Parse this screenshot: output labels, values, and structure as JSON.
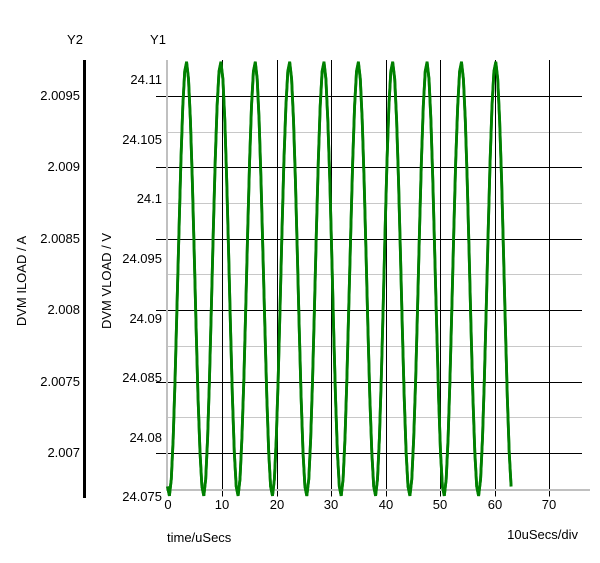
{
  "colors": {
    "background": "#ffffff",
    "trace": "#008000",
    "grid_major": "#000000",
    "grid_minor": "#c8c8c8",
    "axis_gray": "#c0c0c0",
    "axis_black": "#000000",
    "text": "#000000"
  },
  "chart_data": {
    "type": "line",
    "x_axis": {
      "label": "time/uSecs",
      "div_label": "10uSecs/div",
      "units": "uSecs",
      "tick_labels": [
        "0",
        "10",
        "20",
        "30",
        "40",
        "50",
        "60",
        "70"
      ],
      "tick_values": [
        0,
        10,
        20,
        30,
        40,
        50,
        60,
        70
      ],
      "range": [
        0,
        76
      ],
      "grid_every": 10
    },
    "y1_axis": {
      "header": "Y1",
      "label": "DVM VLOAD / V",
      "units": "V",
      "tick_labels": [
        "24.11",
        "24.105",
        "24.1",
        "24.095",
        "24.09",
        "24.085",
        "24.08",
        "24.075"
      ],
      "tick_values": [
        24.11,
        24.105,
        24.1,
        24.095,
        24.09,
        24.085,
        24.08,
        24.075
      ],
      "range": [
        24.0757,
        24.1117
      ]
    },
    "y2_axis": {
      "header": "Y2",
      "label": "DVM ILOAD / A",
      "units": "A",
      "tick_labels": [
        "2.0095",
        "2.009",
        "2.0085",
        "2.008",
        "2.0075",
        "2.007"
      ],
      "tick_values": [
        2.0095,
        2.009,
        2.0085,
        2.008,
        2.0075,
        2.007
      ],
      "range": [
        2.00675,
        2.00975
      ]
    },
    "grid": {
      "vertical_lines_us": [
        10,
        20,
        30,
        40,
        50,
        60,
        70
      ],
      "horizontal_major_from": "y2_axis.tick_values",
      "horizontal_minor": "midpoints_between_y2_ticks"
    },
    "series": [
      {
        "name": "DVM VLOAD",
        "axis": "Y1",
        "color": "#008000",
        "shape": "sine",
        "mean": 24.0933,
        "amplitude": 0.0182,
        "period_us": 6.3,
        "t_of_first_min_us": 0.3,
        "t_start_us": 0,
        "t_end_us": 63.2,
        "cycles_visible": 10
      },
      {
        "name": "DVM ILOAD",
        "axis": "Y2",
        "color": "#008000",
        "shape": "sine",
        "mean": 2.00822,
        "amplitude": 0.00152,
        "period_us": 6.3,
        "t_of_first_min_us": 0.3,
        "t_start_us": 0,
        "t_end_us": 63.2,
        "cycles_visible": 10
      }
    ]
  }
}
